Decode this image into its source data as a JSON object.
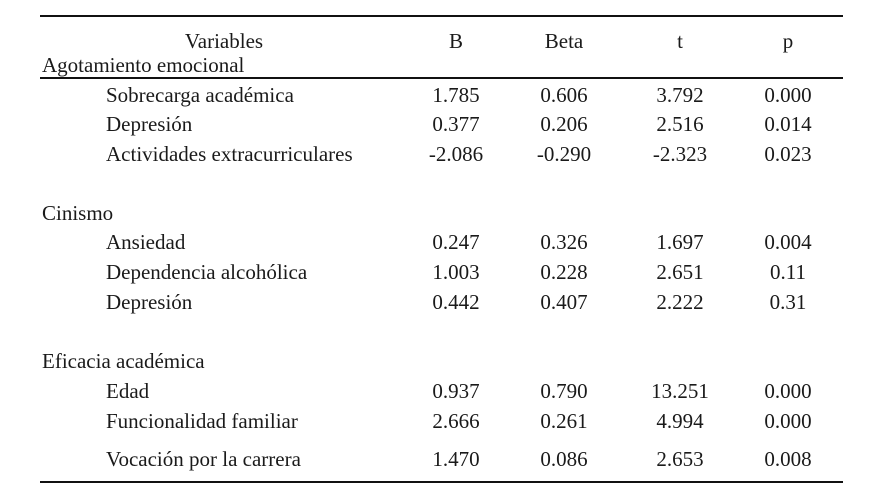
{
  "header": {
    "variables": "Variables",
    "group1_label": "Agotamiento emocional",
    "col_b": "B",
    "col_beta": "Beta",
    "col_t": "t",
    "col_p": "p"
  },
  "groups": [
    {
      "name": "Agotamiento emocional",
      "rows": [
        {
          "variable": "Sobrecarga académica",
          "b": "1.785",
          "beta": "0.606",
          "t": "3.792",
          "p": "0.000"
        },
        {
          "variable": "Depresión",
          "b": "0.377",
          "beta": "0.206",
          "t": "2.516",
          "p": "0.014"
        },
        {
          "variable": "Actividades extracurriculares",
          "b": "-2.086",
          "beta": "-0.290",
          "t": "-2.323",
          "p": "0.023"
        }
      ]
    },
    {
      "name": "Cinismo",
      "rows": [
        {
          "variable": "Ansiedad",
          "b": "0.247",
          "beta": "0.326",
          "t": "1.697",
          "p": "0.004"
        },
        {
          "variable": "Dependencia alcohólica",
          "b": "1.003",
          "beta": "0.228",
          "t": "2.651",
          "p": "0.11"
        },
        {
          "variable": "Depresión",
          "b": "0.442",
          "beta": "0.407",
          "t": "2.222",
          "p": "0.31"
        }
      ]
    },
    {
      "name": "Eficacia académica",
      "rows": [
        {
          "variable": "Edad",
          "b": "0.937",
          "beta": "0.790",
          "t": "13.251",
          "p": "0.000"
        },
        {
          "variable": "Funcionalidad familiar",
          "b": "2.666",
          "beta": "0.261",
          "t": "4.994",
          "p": "0.000"
        },
        {
          "variable": "Vocación por la carrera",
          "b": "1.470",
          "beta": "0.086",
          "t": "2.653",
          "p": "0.008"
        }
      ]
    }
  ]
}
